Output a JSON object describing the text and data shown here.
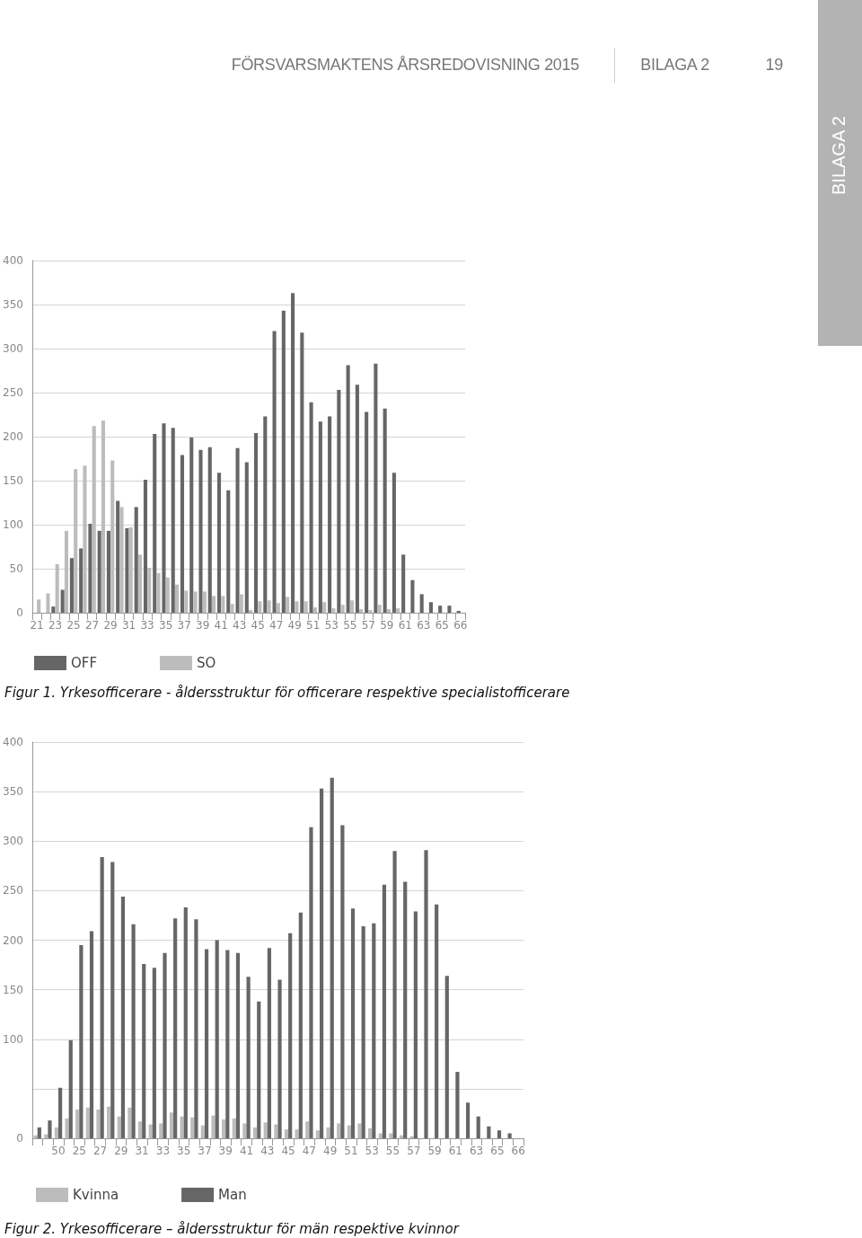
{
  "chart_data": [
    {
      "type": "bar",
      "title": "Figur 1. Yrkesofficerare - åldersstruktur för officerare respektive specialistofficerare",
      "annotations": [
        "FÖRSVARSMAKTENS ÅRSREDOVISNING 2015",
        "BILAGA 2",
        "19",
        "BILAGA 2"
      ],
      "categories": [
        "21",
        null,
        "23",
        null,
        "25",
        null,
        "27",
        null,
        "29",
        null,
        "31",
        null,
        "33",
        null,
        "35",
        null,
        "37",
        null,
        "39",
        null,
        "41",
        null,
        "43",
        null,
        "45",
        null,
        "47",
        null,
        "49",
        null,
        "51",
        null,
        "53",
        null,
        "55",
        null,
        "57",
        null,
        "59",
        null,
        "61",
        null,
        "63",
        null,
        "65",
        null,
        "66"
      ],
      "series": [
        {
          "name": "OFF",
          "color": "#666666",
          "values": [
            0,
            0,
            7,
            26,
            62,
            73,
            101,
            93,
            93,
            127,
            96,
            120,
            151,
            203,
            215,
            210,
            179,
            199,
            185,
            188,
            159,
            139,
            187,
            171,
            204,
            223,
            320,
            343,
            363,
            318,
            239,
            217,
            223,
            253,
            281,
            259,
            228,
            283,
            232,
            159,
            66,
            37,
            21,
            12,
            8,
            8,
            2
          ]
        },
        {
          "name": "SO",
          "color": "#bcbcbc",
          "values": [
            15,
            22,
            55,
            93,
            163,
            167,
            212,
            218,
            173,
            120,
            97,
            66,
            51,
            45,
            40,
            32,
            25,
            24,
            24,
            19,
            19,
            10,
            21,
            3,
            13,
            14,
            11,
            18,
            13,
            13,
            6,
            12,
            5,
            9,
            14,
            4,
            3,
            9,
            4,
            5,
            0,
            0,
            0,
            0,
            0,
            0,
            0
          ]
        }
      ],
      "ylim": [
        0,
        400
      ],
      "yticks": [
        0,
        50,
        100,
        150,
        200,
        250,
        300,
        350,
        400
      ],
      "grid": "y",
      "legend": "bottom left"
    },
    {
      "type": "bar",
      "title": "Figur 2. Yrkesofficerare – åldersstruktur för män respektive kvinnor",
      "categories": [
        null,
        null,
        "50",
        null,
        "25",
        null,
        "27",
        null,
        "29",
        null,
        "31",
        null,
        "33",
        null,
        "35",
        null,
        "37",
        null,
        "39",
        null,
        "41",
        null,
        "43",
        null,
        "45",
        null,
        "47",
        null,
        "49",
        null,
        "51",
        null,
        "53",
        null,
        "55",
        null,
        "57",
        null,
        "59",
        null,
        "61",
        null,
        "63",
        null,
        "65",
        null,
        "66"
      ],
      "series": [
        {
          "name": "Kvinna",
          "color": "#bcbcbc",
          "values": [
            3,
            4,
            11,
            20,
            29,
            31,
            29,
            32,
            22,
            31,
            17,
            14,
            15,
            26,
            22,
            21,
            13,
            23,
            19,
            20,
            15,
            11,
            16,
            14,
            9,
            9,
            17,
            8,
            11,
            15,
            13,
            15,
            10,
            5,
            5,
            3,
            2,
            0,
            0,
            0,
            0,
            0,
            0,
            0,
            0,
            0,
            null
          ]
        },
        {
          "name": "Man",
          "color": "#666666",
          "values": [
            11,
            18,
            51,
            99,
            195,
            209,
            284,
            279,
            244,
            216,
            176,
            172,
            187,
            222,
            233,
            221,
            191,
            200,
            190,
            187,
            163,
            138,
            192,
            160,
            207,
            228,
            314,
            353,
            364,
            316,
            232,
            214,
            217,
            256,
            290,
            259,
            229,
            291,
            236,
            164,
            67,
            36,
            22,
            12,
            8,
            5,
            null
          ]
        }
      ],
      "ylim": [
        0,
        400
      ],
      "yticks": [
        0,
        {
          "value": 50,
          "label": null
        },
        100,
        150,
        200,
        250,
        300,
        350,
        400
      ],
      "grid": "y",
      "legend": "bottom left"
    }
  ]
}
